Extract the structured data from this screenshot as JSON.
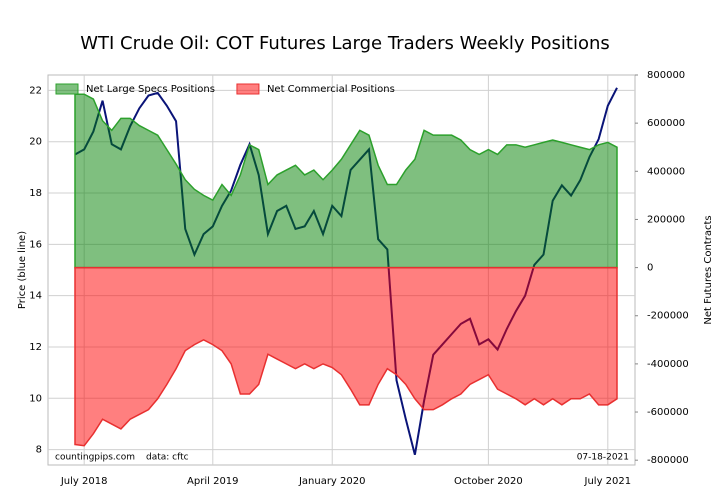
{
  "chart_data": {
    "type": "combo",
    "title": "WTI Crude Oil: COT Futures Large Traders Weekly Positions",
    "ylabel": "Price (blue line)",
    "y2label": "Net Futures Contracts",
    "annotations": [
      "countingpips.com",
      "data: cftc",
      "07-18-2021"
    ],
    "categories": [
      null,
      "July 2018",
      null,
      null,
      null,
      null,
      null,
      null,
      null,
      null,
      null,
      null,
      null,
      null,
      null,
      "April 2019",
      null,
      null,
      null,
      null,
      null,
      null,
      null,
      null,
      null,
      null,
      null,
      null,
      "January 2020",
      null,
      null,
      null,
      null,
      null,
      null,
      null,
      null,
      null,
      null,
      null,
      null,
      null,
      null,
      null,
      null,
      "October 2020",
      null,
      null,
      null,
      null,
      null,
      null,
      null,
      null,
      null,
      null,
      null,
      null,
      "July 2021",
      null
    ],
    "series": [
      {
        "name": "Net Large Specs Positions",
        "type": "area",
        "axis": "y2",
        "color": "#2ca02c",
        "fill": "#008000",
        "values": [
          720000,
          720000,
          700000,
          610000,
          570000,
          620000,
          620000,
          590000,
          570000,
          550000,
          490000,
          430000,
          365000,
          325000,
          300000,
          280000,
          345000,
          300000,
          385000,
          510000,
          490000,
          345000,
          385000,
          405000,
          425000,
          385000,
          405000,
          365000,
          405000,
          450000,
          510000,
          570000,
          550000,
          425000,
          345000,
          345000,
          405000,
          450000,
          570000,
          550000,
          550000,
          550000,
          530000,
          490000,
          470000,
          490000,
          470000,
          510000,
          510000,
          500000,
          510000,
          520000,
          530000,
          520000,
          510000,
          500000,
          490000,
          510000,
          520000,
          500000
        ]
      },
      {
        "name": "Net Commercial Positions",
        "type": "area",
        "axis": "y2",
        "color": "#e83030",
        "fill": "#ff0000",
        "values": [
          -735000,
          -740000,
          -690000,
          -630000,
          -650000,
          -670000,
          -630000,
          -610000,
          -590000,
          -545000,
          -485000,
          -420000,
          -345000,
          -320000,
          -300000,
          -320000,
          -345000,
          -400000,
          -525000,
          -525000,
          -485000,
          -360000,
          -380000,
          -400000,
          -420000,
          -400000,
          -420000,
          -400000,
          -415000,
          -445000,
          -505000,
          -570000,
          -570000,
          -485000,
          -420000,
          -445000,
          -485000,
          -545000,
          -590000,
          -590000,
          -570000,
          -545000,
          -525000,
          -485000,
          -465000,
          -445000,
          -505000,
          -525000,
          -545000,
          -570000,
          -545000,
          -570000,
          -545000,
          -570000,
          -545000,
          -545000,
          -525000,
          -570000,
          -570000,
          -545000
        ]
      },
      {
        "type": "line",
        "axis": "y",
        "color": "#0a1478",
        "values": [
          19.5,
          19.7,
          20.4,
          21.6,
          19.9,
          19.7,
          20.6,
          21.3,
          21.8,
          21.9,
          21.4,
          20.8,
          16.6,
          15.6,
          16.4,
          16.7,
          17.5,
          18.1,
          19.1,
          19.9,
          18.7,
          16.4,
          17.3,
          17.5,
          16.6,
          16.7,
          17.3,
          16.4,
          17.5,
          17.1,
          18.9,
          19.3,
          19.7,
          16.2,
          15.8,
          10.7,
          9.2,
          7.8,
          9.9,
          11.7,
          12.1,
          12.5,
          12.9,
          13.1,
          12.1,
          12.3,
          11.9,
          12.7,
          13.4,
          14.0,
          15.2,
          15.6,
          17.7,
          18.3,
          17.9,
          18.5,
          19.4,
          20.1,
          21.4,
          22.1
        ]
      }
    ],
    "ylim": [
      7.4,
      22.6
    ],
    "yticks": [
      8,
      10,
      12,
      14,
      16,
      18,
      20,
      22
    ],
    "y2lim": [
      -820000,
      800000
    ],
    "y2ticks": [
      -800000,
      -600000,
      -400000,
      -200000,
      0,
      200000,
      400000,
      600000,
      800000
    ],
    "grid": true,
    "legend": "upper left"
  }
}
